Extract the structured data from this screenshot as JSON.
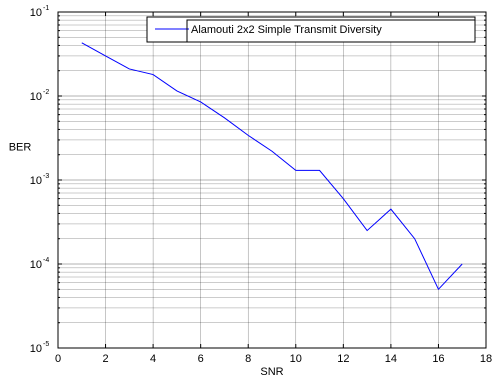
{
  "chart_data": {
    "type": "line",
    "title": "",
    "xlabel": "SNR",
    "ylabel": "BER",
    "yscale": "log",
    "xlim": [
      0,
      18
    ],
    "ylim": [
      1e-05,
      0.1
    ],
    "grid": true,
    "legend_position": "top-right",
    "x_ticks": [
      "0",
      "2",
      "4",
      "6",
      "8",
      "10",
      "12",
      "14",
      "16",
      "18"
    ],
    "y_ticks": [
      {
        "base": "10",
        "exp": "-5"
      },
      {
        "base": "10",
        "exp": "-4"
      },
      {
        "base": "10",
        "exp": "-3"
      },
      {
        "base": "10",
        "exp": "-2"
      },
      {
        "base": "10",
        "exp": "-1"
      }
    ],
    "series": [
      {
        "name": "Alamouti 2x2 Simple Transmit Diversity",
        "color": "#0000ff",
        "x": [
          1,
          2,
          3,
          4,
          5,
          6,
          7,
          8,
          9,
          10,
          11,
          12,
          13,
          14,
          15,
          16,
          17
        ],
        "y": [
          0.043,
          0.03,
          0.021,
          0.018,
          0.0115,
          0.0085,
          0.0055,
          0.0034,
          0.0022,
          0.0013,
          0.0013,
          0.0006,
          0.00025,
          0.00045,
          0.0002,
          5e-05,
          0.0001
        ]
      }
    ]
  }
}
